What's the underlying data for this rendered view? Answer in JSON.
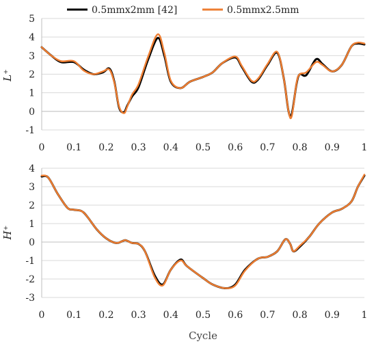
{
  "legend": [
    {
      "name": "0.5mmx2mm [42]",
      "color": "#000000"
    },
    {
      "name": "0.5mmx2.5mm",
      "color": "#ED7D31"
    }
  ],
  "chart_data": [
    {
      "type": "line",
      "ylabel": "L⁺",
      "xlabel": "",
      "xlim": [
        0,
        1
      ],
      "ylim": [
        -1,
        5
      ],
      "xticks": [
        "0",
        "0.1",
        "0.2",
        "0.3",
        "0.4",
        "0.5",
        "0.6",
        "0.7",
        "0.8",
        "0.9",
        "1"
      ],
      "yticks": [
        "-1",
        "0",
        "1",
        "2",
        "3",
        "4",
        "5"
      ],
      "grid": "horizontal",
      "legend_position": "top",
      "series": [
        {
          "name": "0.5mmx2mm [42]",
          "color": "#000000",
          "x": [
            0,
            0.03,
            0.06,
            0.1,
            0.13,
            0.16,
            0.19,
            0.21,
            0.225,
            0.24,
            0.255,
            0.265,
            0.28,
            0.3,
            0.33,
            0.36,
            0.38,
            0.4,
            0.43,
            0.46,
            0.5,
            0.53,
            0.56,
            0.6,
            0.62,
            0.65,
            0.67,
            0.7,
            0.73,
            0.75,
            0.765,
            0.775,
            0.79,
            0.8,
            0.82,
            0.85,
            0.87,
            0.9,
            0.93,
            0.96,
            0.98,
            1.0
          ],
          "y": [
            3.45,
            3.0,
            2.65,
            2.65,
            2.25,
            2.0,
            2.1,
            2.3,
            1.6,
            0.2,
            -0.05,
            0.3,
            0.8,
            1.3,
            2.8,
            3.95,
            3.0,
            1.6,
            1.25,
            1.6,
            1.85,
            2.1,
            2.6,
            2.9,
            2.4,
            1.6,
            1.7,
            2.5,
            3.15,
            1.8,
            0.0,
            -0.15,
            1.5,
            2.0,
            1.95,
            2.8,
            2.55,
            2.15,
            2.5,
            3.5,
            3.65,
            3.6
          ]
        },
        {
          "name": "0.5mmx2.5mm",
          "color": "#ED7D31",
          "x": [
            0,
            0.03,
            0.06,
            0.1,
            0.13,
            0.16,
            0.19,
            0.21,
            0.225,
            0.24,
            0.255,
            0.265,
            0.28,
            0.3,
            0.33,
            0.36,
            0.38,
            0.4,
            0.43,
            0.46,
            0.5,
            0.53,
            0.56,
            0.6,
            0.62,
            0.65,
            0.67,
            0.7,
            0.73,
            0.75,
            0.765,
            0.775,
            0.79,
            0.8,
            0.82,
            0.85,
            0.87,
            0.9,
            0.93,
            0.96,
            0.98,
            1.0
          ],
          "y": [
            3.45,
            3.0,
            2.7,
            2.7,
            2.2,
            2.0,
            2.15,
            2.25,
            1.55,
            0.25,
            -0.1,
            0.25,
            0.9,
            1.45,
            2.95,
            4.15,
            3.15,
            1.65,
            1.25,
            1.6,
            1.85,
            2.1,
            2.6,
            2.95,
            2.45,
            1.65,
            1.75,
            2.55,
            3.2,
            1.8,
            0.0,
            -0.25,
            1.55,
            2.0,
            2.1,
            2.65,
            2.5,
            2.15,
            2.5,
            3.5,
            3.7,
            3.65
          ]
        }
      ]
    },
    {
      "type": "line",
      "ylabel": "H⁺",
      "xlabel": "Cycle",
      "xlim": [
        0,
        1
      ],
      "ylim": [
        -3,
        4
      ],
      "xticks": [
        "0",
        "0.1",
        "0.2",
        "0.3",
        "0.4",
        "0.5",
        "0.6",
        "0.7",
        "0.8",
        "0.9",
        "1"
      ],
      "yticks": [
        "-3",
        "-2",
        "-1",
        "0",
        "1",
        "2",
        "3",
        "4"
      ],
      "grid": "horizontal",
      "series": [
        {
          "name": "0.5mmx2mm [42]",
          "color": "#000000",
          "x": [
            0,
            0.02,
            0.05,
            0.08,
            0.1,
            0.13,
            0.17,
            0.2,
            0.23,
            0.25,
            0.26,
            0.28,
            0.3,
            0.32,
            0.35,
            0.375,
            0.4,
            0.43,
            0.45,
            0.5,
            0.53,
            0.57,
            0.6,
            0.63,
            0.67,
            0.7,
            0.73,
            0.755,
            0.77,
            0.78,
            0.8,
            0.83,
            0.86,
            0.9,
            0.93,
            0.96,
            0.98,
            1.0
          ],
          "y": [
            3.55,
            3.5,
            2.6,
            1.85,
            1.75,
            1.6,
            0.7,
            0.2,
            -0.05,
            0.05,
            0.1,
            -0.05,
            -0.1,
            -0.5,
            -1.8,
            -2.3,
            -1.5,
            -0.95,
            -1.3,
            -1.95,
            -2.3,
            -2.5,
            -2.3,
            -1.5,
            -0.9,
            -0.8,
            -0.5,
            0.15,
            -0.1,
            -0.5,
            -0.25,
            0.3,
            1.0,
            1.6,
            1.8,
            2.2,
            3.0,
            3.6
          ]
        },
        {
          "name": "0.5mmx2.5mm",
          "color": "#ED7D31",
          "x": [
            0,
            0.02,
            0.05,
            0.08,
            0.1,
            0.13,
            0.17,
            0.2,
            0.23,
            0.25,
            0.26,
            0.28,
            0.3,
            0.32,
            0.35,
            0.375,
            0.4,
            0.43,
            0.45,
            0.5,
            0.53,
            0.57,
            0.6,
            0.63,
            0.67,
            0.7,
            0.73,
            0.755,
            0.77,
            0.78,
            0.8,
            0.83,
            0.86,
            0.9,
            0.93,
            0.96,
            0.98,
            1.0
          ],
          "y": [
            3.6,
            3.5,
            2.6,
            1.85,
            1.75,
            1.6,
            0.7,
            0.2,
            -0.05,
            0.05,
            0.1,
            -0.05,
            -0.1,
            -0.5,
            -1.9,
            -2.35,
            -1.5,
            -1.0,
            -1.3,
            -1.95,
            -2.3,
            -2.5,
            -2.35,
            -1.55,
            -0.9,
            -0.8,
            -0.5,
            0.15,
            -0.1,
            -0.5,
            -0.2,
            0.3,
            1.0,
            1.6,
            1.8,
            2.2,
            3.0,
            3.65
          ]
        }
      ]
    }
  ]
}
